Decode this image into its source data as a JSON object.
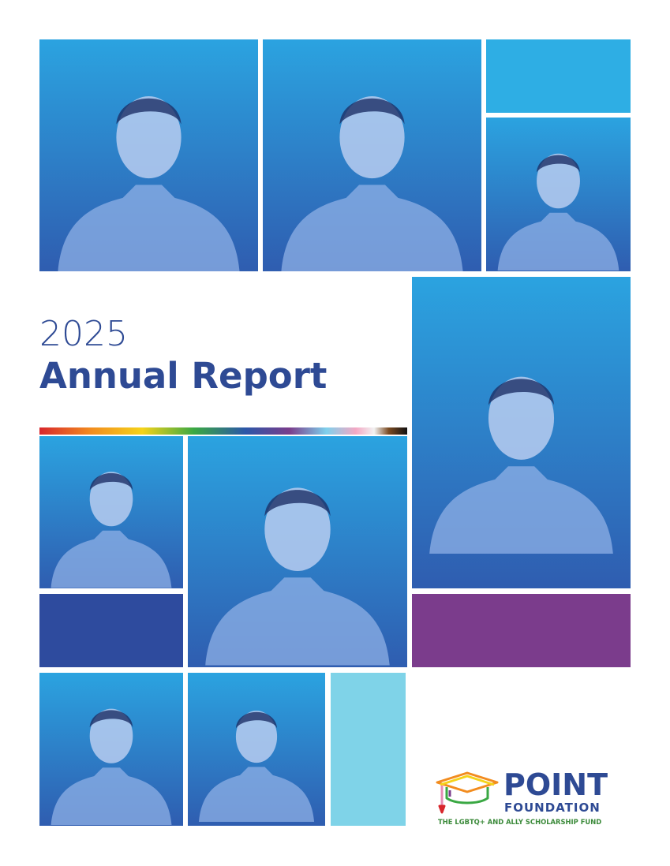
{
  "header": {
    "year": "2025",
    "title": "Annual Report"
  },
  "logo": {
    "name": "POINT",
    "subname": "FOUNDATION",
    "tagline": "THE LGBTQ+ AND ALLY SCHOLARSHIP FUND"
  }
}
